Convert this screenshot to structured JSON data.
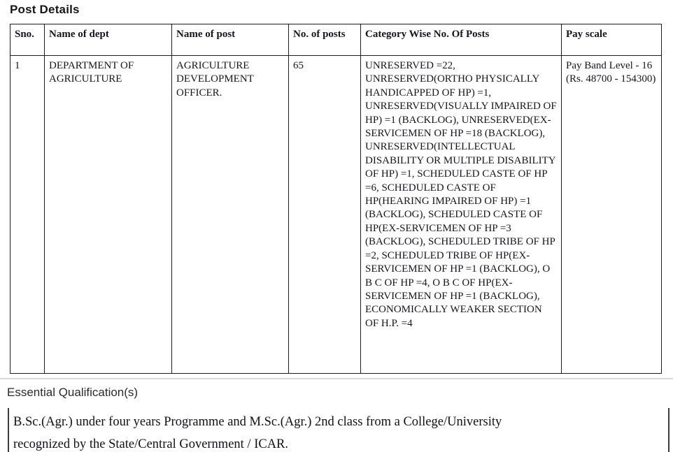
{
  "page_title": "Post Details",
  "table": {
    "columns": [
      "Sno.",
      "Name of dept",
      "Name of post",
      "No. of posts",
      "Category Wise No. Of Posts",
      "Pay scale"
    ],
    "rows": [
      {
        "sno": "1",
        "dept": "DEPARTMENT OF AGRICULTURE",
        "post": "AGRICULTURE DEVELOPMENT OFFICER.",
        "num_posts": "65",
        "category": "UNRESERVED =22, UNRESERVED(ORTHO PHYSICALLY HANDICAPPED OF HP) =1, UNRESERVED(VISUALLY IMPAIRED OF HP) =1 (BACKLOG), UNRESERVED(EX-SERVICEMEN OF HP =18 (BACKLOG), UNRESERVED(INTELLECTUAL DISABILITY OR MULTIPLE DISABILITY OF HP) =1, SCHEDULED CASTE OF HP =6, SCHEDULED CASTE OF HP(HEARING IMPAIRED OF HP) =1 (BACKLOG), SCHEDULED CASTE OF HP(EX-SERVICEMEN OF HP =3 (BACKLOG), SCHEDULED TRIBE OF HP =2, SCHEDULED TRIBE OF HP(EX-SERVICEMEN OF HP =1 (BACKLOG), O B C OF HP =4, O B C OF HP(EX-SERVICEMEN OF HP =1 (BACKLOG), ECONOMICALLY WEAKER SECTION OF H.P. =4",
        "pay_scale": "Pay Band Level - 16 (Rs. 48700 - 154300)"
      }
    ]
  },
  "qualification": {
    "section_title": "Essential Qualification(s)",
    "lines": [
      "B.Sc.(Agr.) under four years Programme and M.Sc.(Agr.) 2nd class from a College/University",
      "recognized by the State/Central Government / ICAR."
    ]
  }
}
